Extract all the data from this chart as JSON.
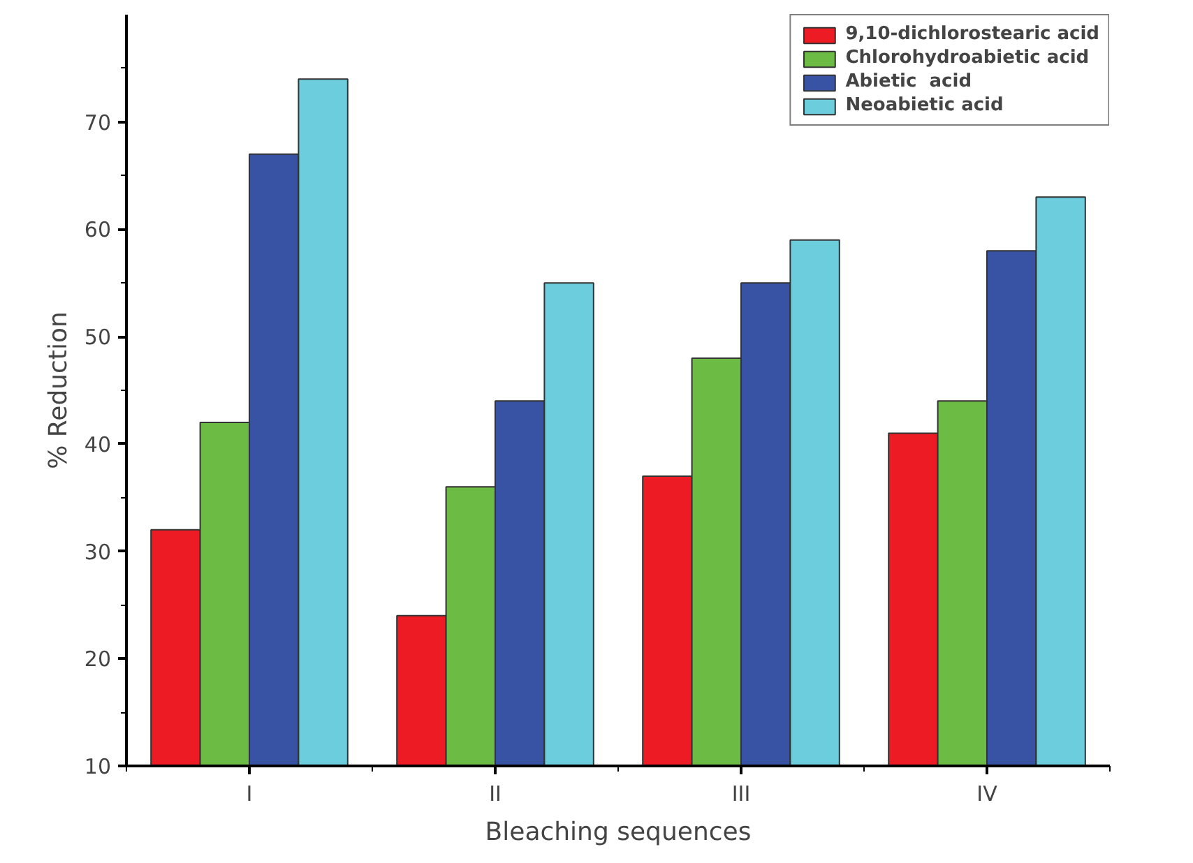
{
  "chart_data": {
    "type": "bar",
    "xlabel": "Bleaching sequences",
    "ylabel": "% Reduction",
    "categories": [
      "I",
      "II",
      "III",
      "IV"
    ],
    "series": [
      {
        "name": "9,10-dichlorostearic acid",
        "color": "#ed1c24",
        "values": [
          32,
          24,
          37,
          41
        ]
      },
      {
        "name": "Chlorohydroabietic acid",
        "color": "#6cbb45",
        "values": [
          42,
          36,
          48,
          44
        ]
      },
      {
        "name": "Abietic  acid",
        "color": "#3853a4",
        "values": [
          67,
          44,
          55,
          58
        ]
      },
      {
        "name": "Neoabietic acid",
        "color": "#6ccddd",
        "values": [
          74,
          55,
          59,
          63
        ]
      }
    ],
    "ylim": [
      10,
      80
    ],
    "yticks": [
      10,
      20,
      30,
      40,
      50,
      60,
      70
    ],
    "grid": false,
    "legend": "top right"
  }
}
